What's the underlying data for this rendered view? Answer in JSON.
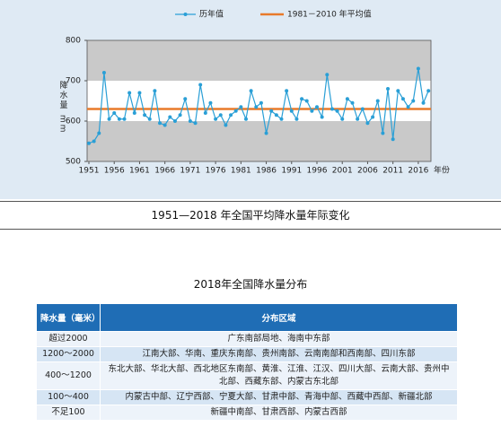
{
  "chart_data": {
    "type": "line",
    "x_label": "年份",
    "y_label": "降水量 mm",
    "x": [
      1951,
      1952,
      1953,
      1954,
      1955,
      1956,
      1957,
      1958,
      1959,
      1960,
      1961,
      1962,
      1963,
      1964,
      1965,
      1966,
      1967,
      1968,
      1969,
      1970,
      1971,
      1972,
      1973,
      1974,
      1975,
      1976,
      1977,
      1978,
      1979,
      1980,
      1981,
      1982,
      1983,
      1984,
      1985,
      1986,
      1987,
      1988,
      1989,
      1990,
      1991,
      1992,
      1993,
      1994,
      1995,
      1996,
      1997,
      1998,
      1999,
      2000,
      2001,
      2002,
      2003,
      2004,
      2005,
      2006,
      2007,
      2008,
      2009,
      2010,
      2011,
      2012,
      2013,
      2014,
      2015,
      2016,
      2017,
      2018
    ],
    "series": [
      {
        "name": "历年值",
        "color": "#2a9fd6",
        "values": [
          545,
          550,
          570,
          720,
          605,
          620,
          605,
          605,
          670,
          620,
          670,
          615,
          605,
          675,
          595,
          590,
          610,
          600,
          615,
          655,
          600,
          595,
          690,
          620,
          645,
          605,
          615,
          590,
          615,
          625,
          635,
          605,
          675,
          635,
          645,
          570,
          625,
          615,
          605,
          675,
          625,
          605,
          655,
          650,
          625,
          635,
          610,
          715,
          630,
          625,
          605,
          655,
          645,
          605,
          630,
          595,
          610,
          650,
          570,
          680,
          555,
          675,
          655,
          635,
          650,
          730,
          645,
          675
        ]
      }
    ],
    "reference_line": {
      "name": "1981－2010 年平均值",
      "value": 630,
      "color": "#e87a2a"
    },
    "xlim": [
      1951,
      2018.5
    ],
    "xticks": [
      1951,
      1956,
      1961,
      1966,
      1971,
      1976,
      1981,
      1986,
      1991,
      1996,
      2001,
      2006,
      2011,
      2016
    ],
    "ylim": [
      500,
      800
    ],
    "yticks": [
      500,
      600,
      700,
      800
    ],
    "caption": "1951—2018 年全国平均降水量年际变化"
  },
  "table": {
    "title": "2018年全国降水量分布",
    "header": [
      "降水量（毫米）",
      "分布区域"
    ],
    "rows": [
      [
        "超过2000",
        "广东南部局地、海南中东部"
      ],
      [
        "1200～2000",
        "江南大部、华南、重庆东南部、贵州南部、云南南部和西南部、四川东部"
      ],
      [
        "400～1200",
        "东北大部、华北大部、西北地区东南部、黄淮、江淮、江汉、四川大部、云南大部、贵州中北部、西藏东部、内蒙古东北部"
      ],
      [
        "100～400",
        "内蒙古中部、辽宁西部、宁夏大部、甘肃中部、青海中部、西藏中西部、新疆北部"
      ],
      [
        "不足100",
        "新疆中南部、甘肃西部、内蒙古西部"
      ]
    ]
  }
}
